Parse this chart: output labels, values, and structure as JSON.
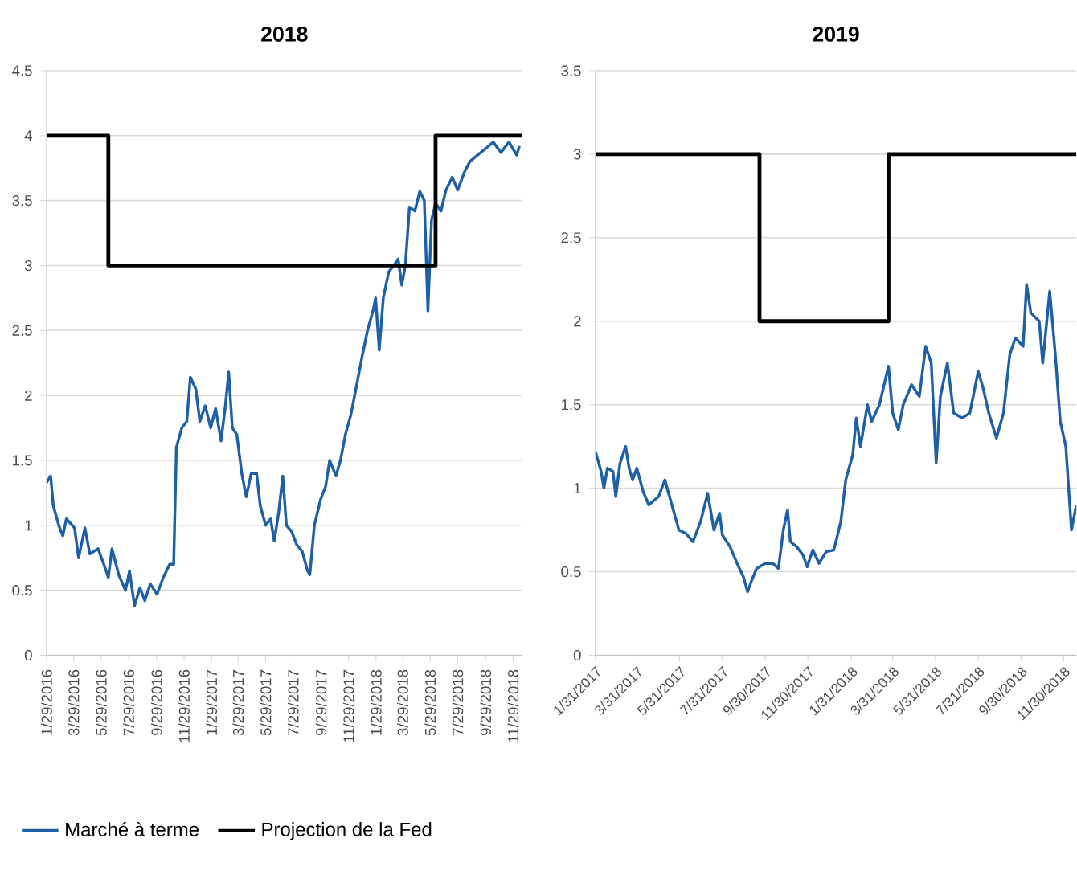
{
  "chart_data": [
    {
      "type": "line",
      "title": "2018",
      "grid": "y",
      "legend": "bottom",
      "line_style": "solid",
      "marker": "none",
      "xlim": [
        "2016-01-29",
        "2018-12-19"
      ],
      "ylim": [
        0,
        4.5
      ],
      "yticks": [
        0,
        0.5,
        1,
        1.5,
        2,
        2.5,
        3,
        3.5,
        4,
        4.5
      ],
      "xticks": [
        {
          "value": "2016-01-29",
          "label": "1/29/2016"
        },
        {
          "value": "2016-03-29",
          "label": "3/29/2016"
        },
        {
          "value": "2016-05-29",
          "label": "5/29/2016"
        },
        {
          "value": "2016-07-29",
          "label": "7/29/2016"
        },
        {
          "value": "2016-09-29",
          "label": "9/29/2016"
        },
        {
          "value": "2016-11-29",
          "label": "11/29/2016"
        },
        {
          "value": "2017-01-29",
          "label": "1/29/2017"
        },
        {
          "value": "2017-03-29",
          "label": "3/29/2017"
        },
        {
          "value": "2017-05-29",
          "label": "5/29/2017"
        },
        {
          "value": "2017-07-29",
          "label": "7/29/2017"
        },
        {
          "value": "2017-09-29",
          "label": "9/29/2017"
        },
        {
          "value": "2017-11-29",
          "label": "11/29/2017"
        },
        {
          "value": "2018-01-29",
          "label": "1/29/2018"
        },
        {
          "value": "2018-03-29",
          "label": "3/29/2018"
        },
        {
          "value": "2018-05-29",
          "label": "5/29/2018"
        },
        {
          "value": "2018-07-29",
          "label": "7/29/2018"
        },
        {
          "value": "2018-09-29",
          "label": "9/29/2018"
        },
        {
          "value": "2018-11-29",
          "label": "11/29/2018"
        }
      ],
      "series": [
        {
          "name": "Marché à terme",
          "color": "#1f5fa5",
          "x": [
            "2016-01-29",
            "2016-02-07",
            "2016-02-13",
            "2016-02-25",
            "2016-03-05",
            "2016-03-13",
            "2016-03-31",
            "2016-04-09",
            "2016-04-23",
            "2016-05-04",
            "2016-05-22",
            "2016-06-02",
            "2016-06-14",
            "2016-06-22",
            "2016-07-07",
            "2016-07-22",
            "2016-07-31",
            "2016-08-11",
            "2016-08-23",
            "2016-09-03",
            "2016-09-15",
            "2016-09-30",
            "2016-10-14",
            "2016-10-28",
            "2016-11-06",
            "2016-11-12",
            "2016-11-24",
            "2016-12-05",
            "2016-12-13",
            "2016-12-25",
            "2017-01-03",
            "2017-01-15",
            "2017-01-27",
            "2017-02-07",
            "2017-02-19",
            "2017-02-28",
            "2017-03-08",
            "2017-03-16",
            "2017-03-26",
            "2017-04-06",
            "2017-04-16",
            "2017-04-27",
            "2017-05-09",
            "2017-05-17",
            "2017-05-29",
            "2017-06-09",
            "2017-06-17",
            "2017-06-27",
            "2017-07-06",
            "2017-07-14",
            "2017-07-26",
            "2017-08-06",
            "2017-08-18",
            "2017-08-30",
            "2017-09-04",
            "2017-09-14",
            "2017-09-28",
            "2017-10-09",
            "2017-10-18",
            "2017-11-01",
            "2017-11-11",
            "2017-11-22",
            "2017-12-04",
            "2017-12-18",
            "2017-12-29",
            "2018-01-10",
            "2018-01-22",
            "2018-01-28",
            "2018-02-05",
            "2018-02-14",
            "2018-02-26",
            "2018-03-09",
            "2018-03-19",
            "2018-03-27",
            "2018-04-04",
            "2018-04-13",
            "2018-04-25",
            "2018-05-06",
            "2018-05-16",
            "2018-05-24",
            "2018-06-01",
            "2018-06-10",
            "2018-06-22",
            "2018-07-03",
            "2018-07-17",
            "2018-07-29",
            "2018-08-13",
            "2018-08-25",
            "2018-09-11",
            "2018-09-29",
            "2018-10-16",
            "2018-11-02",
            "2018-11-20",
            "2018-12-07",
            "2018-12-13"
          ],
          "values": [
            1.33,
            1.38,
            1.15,
            1.0,
            0.92,
            1.05,
            0.98,
            0.75,
            0.98,
            0.78,
            0.82,
            0.72,
            0.6,
            0.82,
            0.62,
            0.5,
            0.65,
            0.38,
            0.52,
            0.42,
            0.55,
            0.47,
            0.6,
            0.7,
            0.7,
            1.6,
            1.75,
            1.8,
            2.14,
            2.05,
            1.8,
            1.92,
            1.75,
            1.9,
            1.65,
            1.9,
            2.18,
            1.75,
            1.7,
            1.4,
            1.22,
            1.4,
            1.4,
            1.15,
            1.0,
            1.05,
            0.88,
            1.1,
            1.38,
            1.0,
            0.95,
            0.85,
            0.8,
            0.65,
            0.62,
            1.0,
            1.2,
            1.3,
            1.5,
            1.38,
            1.5,
            1.7,
            1.85,
            2.1,
            2.3,
            2.5,
            2.65,
            2.75,
            2.35,
            2.75,
            2.95,
            3.0,
            3.05,
            2.85,
            3.0,
            3.45,
            3.42,
            3.57,
            3.5,
            2.65,
            3.35,
            3.48,
            3.42,
            3.58,
            3.68,
            3.58,
            3.72,
            3.8,
            3.85,
            3.9,
            3.95,
            3.87,
            3.95,
            3.85,
            3.92
          ]
        },
        {
          "name": "Projection de la Fed",
          "color": "#000000",
          "x": [
            "2016-01-29",
            "2016-06-14",
            "2016-06-14",
            "2018-06-10",
            "2018-06-10",
            "2018-12-19"
          ],
          "values": [
            4,
            4,
            3,
            3,
            4,
            4
          ]
        }
      ]
    },
    {
      "type": "line",
      "title": "2019",
      "grid": "y",
      "line_style": "solid",
      "marker": "none",
      "xlim": [
        "2017-01-31",
        "2018-12-18"
      ],
      "ylim": [
        0,
        3.5
      ],
      "yticks": [
        0,
        0.5,
        1,
        1.5,
        2,
        2.5,
        3,
        3.5
      ],
      "xticks": [
        {
          "value": "2017-01-31",
          "label": "1/31/2017"
        },
        {
          "value": "2017-03-31",
          "label": "3/31/2017"
        },
        {
          "value": "2017-05-31",
          "label": "5/31/2017"
        },
        {
          "value": "2017-07-31",
          "label": "7/31/2017"
        },
        {
          "value": "2017-09-30",
          "label": "9/30/2017"
        },
        {
          "value": "2017-11-30",
          "label": "11/30/2017"
        },
        {
          "value": "2018-01-31",
          "label": "1/31/2018"
        },
        {
          "value": "2018-03-31",
          "label": "3/31/2018"
        },
        {
          "value": "2018-05-31",
          "label": "5/31/2018"
        },
        {
          "value": "2018-07-31",
          "label": "7/31/2018"
        },
        {
          "value": "2018-09-30",
          "label": "9/30/2018"
        },
        {
          "value": "2018-11-30",
          "label": "11/30/2018"
        }
      ],
      "series": [
        {
          "color": "#1f5fa5",
          "x": [
            "2017-01-31",
            "2017-02-08",
            "2017-02-12",
            "2017-02-17",
            "2017-02-25",
            "2017-03-01",
            "2017-03-07",
            "2017-03-15",
            "2017-03-20",
            "2017-03-25",
            "2017-03-31",
            "2017-04-09",
            "2017-04-17",
            "2017-05-01",
            "2017-05-10",
            "2017-05-20",
            "2017-05-30",
            "2017-06-09",
            "2017-06-19",
            "2017-06-30",
            "2017-07-10",
            "2017-07-19",
            "2017-07-27",
            "2017-07-31",
            "2017-08-11",
            "2017-08-21",
            "2017-08-30",
            "2017-09-05",
            "2017-09-11",
            "2017-09-18",
            "2017-09-30",
            "2017-10-11",
            "2017-10-19",
            "2017-10-26",
            "2017-11-01",
            "2017-11-05",
            "2017-11-14",
            "2017-11-23",
            "2017-11-29",
            "2017-12-07",
            "2017-12-16",
            "2017-12-26",
            "2018-01-06",
            "2018-01-16",
            "2018-01-23",
            "2018-02-02",
            "2018-02-07",
            "2018-02-13",
            "2018-02-23",
            "2018-03-01",
            "2018-03-12",
            "2018-03-25",
            "2018-03-31",
            "2018-04-08",
            "2018-04-15",
            "2018-04-27",
            "2018-05-08",
            "2018-05-17",
            "2018-05-25",
            "2018-06-01",
            "2018-06-07",
            "2018-06-17",
            "2018-06-26",
            "2018-07-08",
            "2018-07-19",
            "2018-07-31",
            "2018-08-07",
            "2018-08-15",
            "2018-08-26",
            "2018-09-05",
            "2018-09-14",
            "2018-09-22",
            "2018-10-03",
            "2018-10-08",
            "2018-10-14",
            "2018-10-26",
            "2018-10-31",
            "2018-11-10",
            "2018-11-18",
            "2018-11-25",
            "2018-12-03",
            "2018-12-11",
            "2018-12-18"
          ],
          "values": [
            1.22,
            1.1,
            1.0,
            1.12,
            1.1,
            0.95,
            1.15,
            1.25,
            1.12,
            1.05,
            1.12,
            0.98,
            0.9,
            0.95,
            1.05,
            0.9,
            0.75,
            0.73,
            0.68,
            0.8,
            0.97,
            0.75,
            0.85,
            0.72,
            0.65,
            0.55,
            0.47,
            0.38,
            0.45,
            0.52,
            0.55,
            0.55,
            0.52,
            0.75,
            0.87,
            0.68,
            0.65,
            0.6,
            0.53,
            0.63,
            0.55,
            0.62,
            0.63,
            0.8,
            1.05,
            1.2,
            1.42,
            1.25,
            1.5,
            1.4,
            1.5,
            1.73,
            1.45,
            1.35,
            1.5,
            1.62,
            1.55,
            1.85,
            1.75,
            1.15,
            1.55,
            1.75,
            1.45,
            1.42,
            1.45,
            1.7,
            1.6,
            1.45,
            1.3,
            1.45,
            1.8,
            1.9,
            1.85,
            2.22,
            2.05,
            2.0,
            1.75,
            2.18,
            1.8,
            1.4,
            1.25,
            0.75,
            0.9
          ]
        },
        {
          "color": "#000000",
          "x": [
            "2017-01-31",
            "2017-09-22",
            "2017-09-22",
            "2018-03-25",
            "2018-03-25",
            "2018-12-18"
          ],
          "values": [
            3,
            3,
            2,
            2,
            3,
            3
          ]
        }
      ]
    }
  ]
}
